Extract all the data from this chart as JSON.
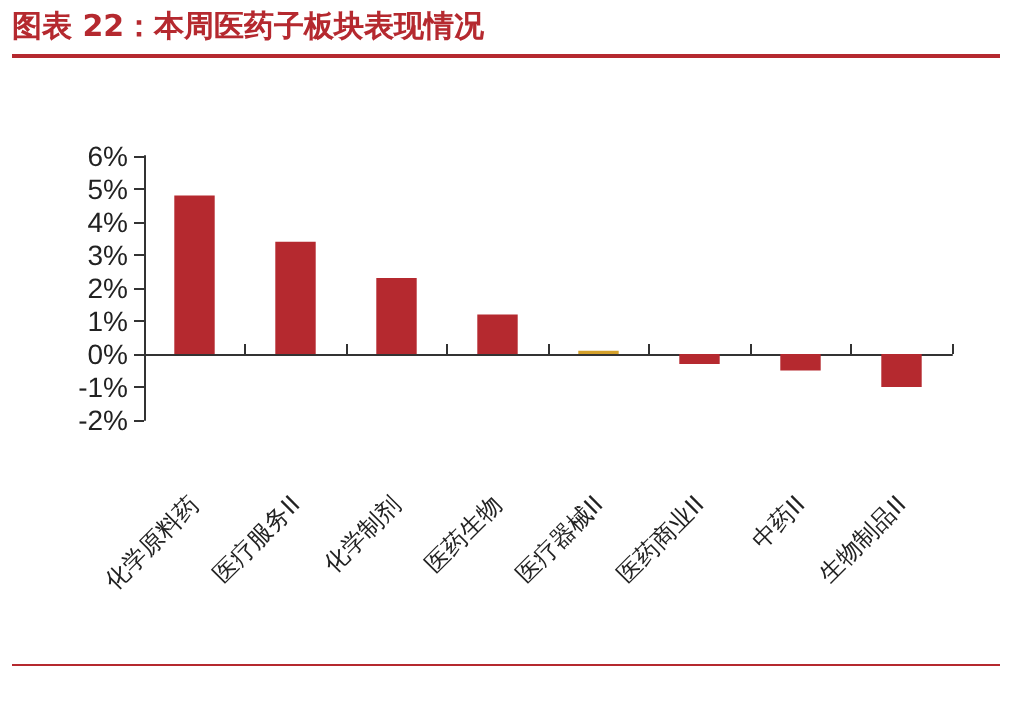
{
  "chart_data": {
    "type": "bar",
    "title": "图表 22：本周医药子板块表现情况",
    "categories": [
      "化学原料药",
      "医疗服务II",
      "化学制剂",
      "医药生物",
      "医疗器械II",
      "医药商业II",
      "中药II",
      "生物制品II"
    ],
    "values": [
      4.8,
      3.4,
      2.3,
      1.2,
      0.1,
      -0.3,
      -0.5,
      -1.0
    ],
    "colors": [
      "#b5292f",
      "#b5292f",
      "#b5292f",
      "#b5292f",
      "#d4a02a",
      "#b5292f",
      "#b5292f",
      "#b5292f"
    ],
    "ylim": [
      -2,
      6
    ],
    "yticks": [
      {
        "value": -2,
        "label": "-2%"
      },
      {
        "value": -1,
        "label": "-1%"
      },
      {
        "value": 0,
        "label": "0%"
      },
      {
        "value": 1,
        "label": "1%"
      },
      {
        "value": 2,
        "label": "2%"
      },
      {
        "value": 3,
        "label": "3%"
      },
      {
        "value": 4,
        "label": "4%"
      },
      {
        "value": 5,
        "label": "5%"
      },
      {
        "value": 6,
        "label": "6%"
      }
    ]
  }
}
